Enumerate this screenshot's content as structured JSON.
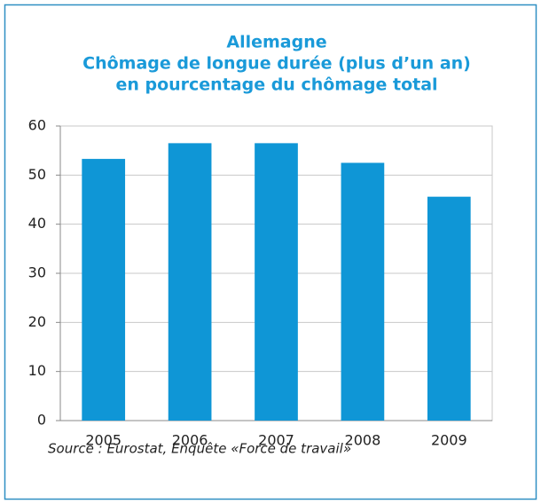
{
  "chart_data": {
    "type": "bar",
    "title": [
      "Allemagne",
      "Chômage de longue durée  (plus d’un an)",
      "en pourcentage du chômage total"
    ],
    "categories": [
      "2005",
      "2006",
      "2007",
      "2008",
      "2009"
    ],
    "values": [
      53.3,
      56.5,
      56.5,
      52.5,
      45.6
    ],
    "color": "#0f96d6",
    "ylim": [
      0,
      60
    ],
    "yticks": [
      0,
      10,
      20,
      30,
      40,
      50,
      60
    ],
    "grid": true,
    "source": "Source : Eurostat, Enquête «Force de travail»"
  }
}
